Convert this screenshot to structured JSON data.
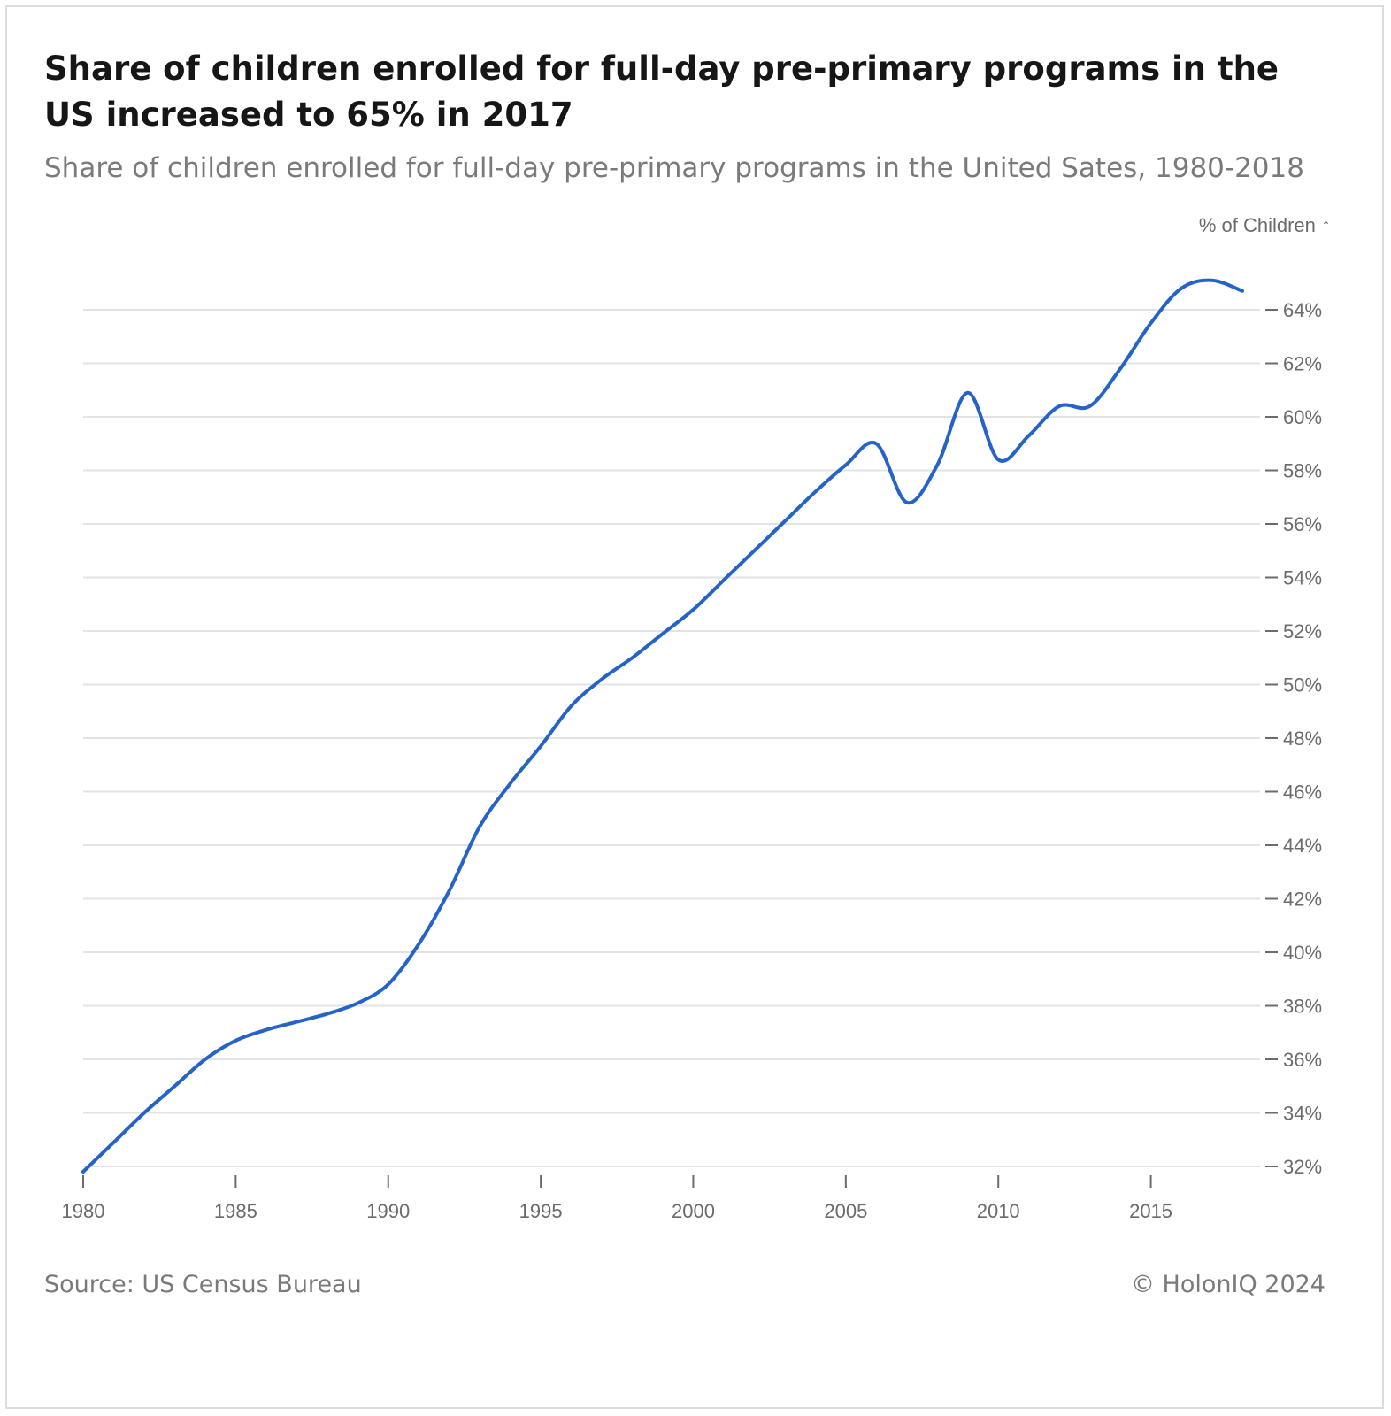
{
  "header": {
    "title": "Share of children enrolled for full-day pre-primary programs in the US increased to 65% in 2017",
    "subtitle": "Share of children enrolled for full-day pre-primary programs in the United Sates, 1980-2018"
  },
  "footer": {
    "source": "Source: US Census Bureau",
    "copyright": "© HolonIQ 2024"
  },
  "chart_data": {
    "type": "line",
    "title": "Share of children enrolled for full-day pre-primary programs in the US increased to 65% in 2017",
    "subtitle": "Share of children enrolled for full-day pre-primary programs in the United Sates, 1980-2018",
    "ylabel": "% of Children ↑",
    "xlabel": "",
    "xlim": [
      1980,
      2018
    ],
    "ylim": [
      32,
      64
    ],
    "x_ticks": [
      1980,
      1985,
      1990,
      1995,
      2000,
      2005,
      2010,
      2015
    ],
    "x_tick_labels": [
      "1980",
      "1985",
      "1990",
      "1995",
      "2000",
      "2005",
      "2010",
      "2015"
    ],
    "y_ticks": [
      32,
      34,
      36,
      38,
      40,
      42,
      44,
      46,
      48,
      50,
      52,
      54,
      56,
      58,
      60,
      62,
      64
    ],
    "y_tick_labels": [
      "32%",
      "34%",
      "36%",
      "38%",
      "40%",
      "42%",
      "44%",
      "46%",
      "48%",
      "50%",
      "52%",
      "54%",
      "56%",
      "58%",
      "60%",
      "62%",
      "64%"
    ],
    "y_axis_position": "right",
    "grid": true,
    "line_color": "#2563c9",
    "series": [
      {
        "x": [
          1980,
          1981,
          1982,
          1983,
          1984,
          1985,
          1986,
          1987,
          1988,
          1989,
          1990,
          1991,
          1992,
          1993,
          1994,
          1995,
          1996,
          1997,
          1998,
          1999,
          2000,
          2001,
          2002,
          2003,
          2004,
          2005,
          2006,
          2007,
          2008,
          2009,
          2010,
          2011,
          2012,
          2013,
          2014,
          2015,
          2016,
          2017,
          2018
        ],
        "values": [
          31.8,
          32.9,
          34.0,
          35.0,
          36.0,
          36.7,
          37.1,
          37.4,
          37.7,
          38.1,
          38.8,
          40.3,
          42.3,
          44.7,
          46.3,
          47.7,
          49.2,
          50.2,
          51.0,
          51.9,
          52.8,
          53.9,
          55.0,
          56.1,
          57.2,
          58.2,
          59.0,
          56.8,
          58.2,
          60.9,
          58.4,
          59.3,
          60.4,
          60.4,
          61.8,
          63.5,
          64.8,
          65.1,
          64.7
        ]
      }
    ]
  }
}
